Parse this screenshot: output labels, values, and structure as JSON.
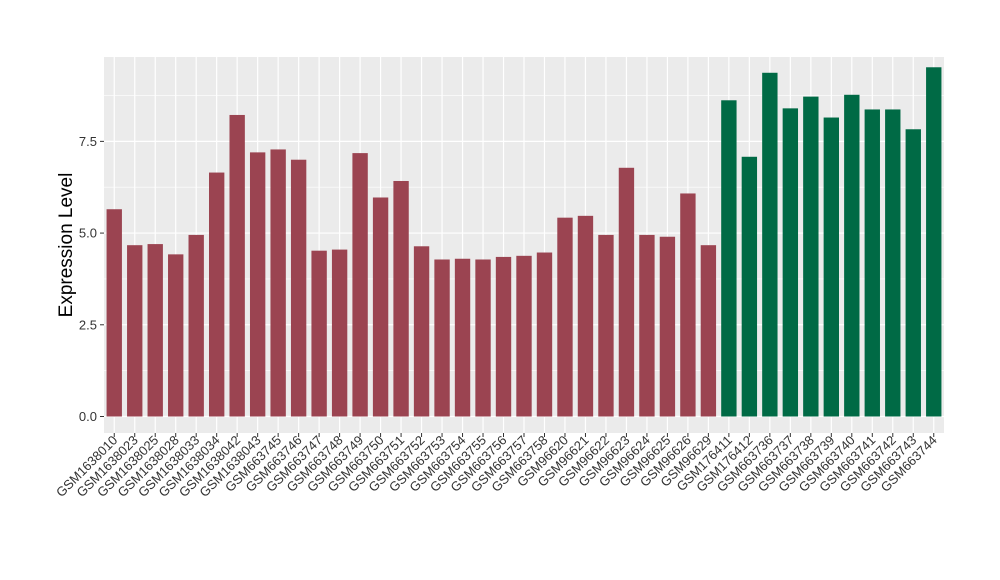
{
  "chart_data": {
    "type": "bar",
    "ylabel": "Expression Level",
    "xlabel": "",
    "ylim": [
      -0.45,
      9.8
    ],
    "yticks": [
      0.0,
      2.5,
      5.0,
      7.5
    ],
    "ytick_labels": [
      "0.0",
      "2.5",
      "5.0",
      "7.5"
    ],
    "grid": true,
    "panel_background": "#ebebeb",
    "categories": [
      "GSM1638010",
      "GSM1638023",
      "GSM1638025",
      "GSM1638028",
      "GSM1638033",
      "GSM1638034",
      "GSM1638042",
      "GSM1638043",
      "GSM663745",
      "GSM663746",
      "GSM663747",
      "GSM663748",
      "GSM663749",
      "GSM663750",
      "GSM663751",
      "GSM663752",
      "GSM663753",
      "GSM663754",
      "GSM663755",
      "GSM663756",
      "GSM663757",
      "GSM663758",
      "GSM96620",
      "GSM96621",
      "GSM96622",
      "GSM96623",
      "GSM96624",
      "GSM96625",
      "GSM96626",
      "GSM96629",
      "GSM176411",
      "GSM176412",
      "GSM663736",
      "GSM663737",
      "GSM663738",
      "GSM663739",
      "GSM663740",
      "GSM663741",
      "GSM663742",
      "GSM663743",
      "GSM663744"
    ],
    "values": [
      5.65,
      4.67,
      4.7,
      4.42,
      4.95,
      6.65,
      8.22,
      7.2,
      7.28,
      7.0,
      4.52,
      4.55,
      7.18,
      5.97,
      6.42,
      4.64,
      4.28,
      4.3,
      4.28,
      4.35,
      4.38,
      4.47,
      5.42,
      5.47,
      4.95,
      6.78,
      4.95,
      4.9,
      6.08,
      4.67,
      8.62,
      7.08,
      9.37,
      8.4,
      8.72,
      8.15,
      8.77,
      8.37,
      8.37,
      7.83,
      9.52
    ],
    "groups": [
      0,
      0,
      0,
      0,
      0,
      0,
      0,
      0,
      0,
      0,
      0,
      0,
      0,
      0,
      0,
      0,
      0,
      0,
      0,
      0,
      0,
      0,
      0,
      0,
      0,
      0,
      0,
      0,
      0,
      0,
      1,
      1,
      1,
      1,
      1,
      1,
      1,
      1,
      1,
      1,
      1
    ],
    "group_colors": [
      "#9b4451",
      "#006a45"
    ]
  }
}
